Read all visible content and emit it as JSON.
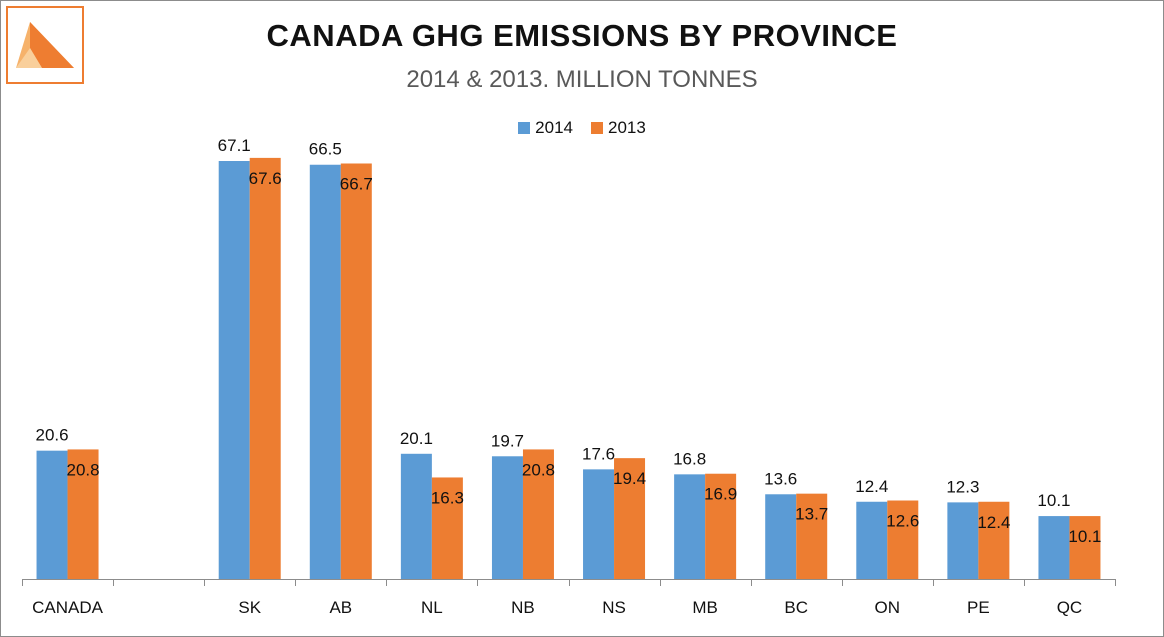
{
  "chart_data": {
    "type": "bar",
    "title": "CANADA GHG EMISSIONS BY PROVINCE",
    "subtitle": "2014 & 2013. MILLION TONNES",
    "categories": [
      "CANADA",
      "",
      "SK",
      "AB",
      "NL",
      "NB",
      "NS",
      "MB",
      "BC",
      "ON",
      "PE",
      "QC"
    ],
    "series": [
      {
        "name": "2014",
        "color": "#5b9bd5",
        "values": [
          20.6,
          null,
          67.1,
          66.5,
          20.1,
          19.7,
          17.6,
          16.8,
          13.6,
          12.4,
          12.3,
          10.1
        ]
      },
      {
        "name": "2013",
        "color": "#ed7d31",
        "values": [
          20.8,
          null,
          67.6,
          66.7,
          16.3,
          20.8,
          19.4,
          16.9,
          13.7,
          12.6,
          12.4,
          10.1
        ]
      }
    ],
    "ylim": [
      0,
      75
    ],
    "legend": "top-center",
    "grid": false
  },
  "logo": {
    "accent": "#ee7d31",
    "light": "#f6b26b",
    "icon": "triangle-logo-icon"
  }
}
